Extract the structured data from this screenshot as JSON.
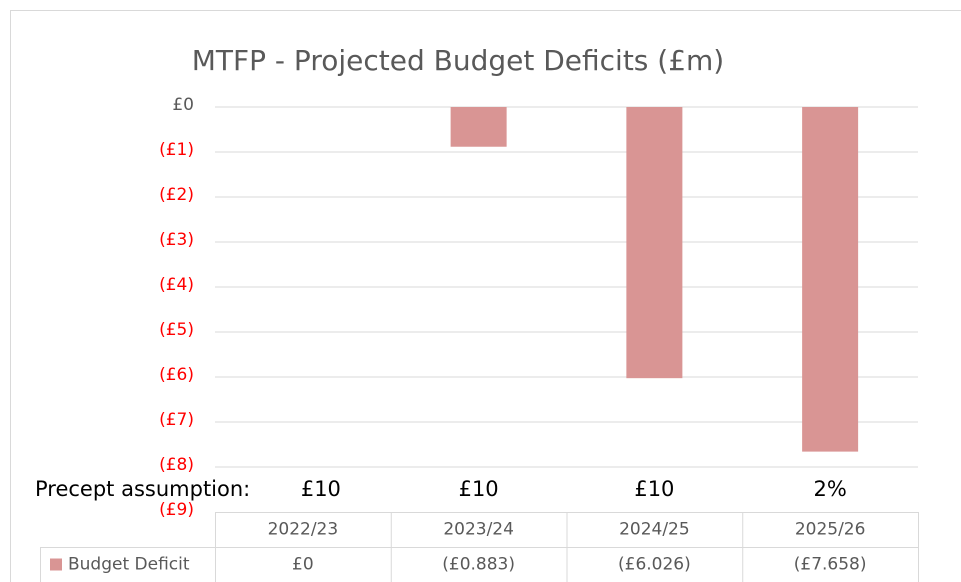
{
  "chart_data": {
    "type": "bar",
    "title": "MTFP - Projected Budget Deficits (£m)",
    "categories": [
      "2022/23",
      "2023/24",
      "2024/25",
      "2025/26"
    ],
    "series": [
      {
        "name": "Budget Deficit",
        "color": "#d99594",
        "values": [
          0,
          -0.883,
          -6.026,
          -7.658
        ],
        "value_labels": [
          "£0",
          "(£0.883)",
          "(£6.026)",
          "(£7.658)"
        ]
      }
    ],
    "ylim": [
      -9,
      0
    ],
    "yticks": [
      {
        "value": 0,
        "label": "£0"
      },
      {
        "value": -1,
        "label": "(£1)"
      },
      {
        "value": -2,
        "label": "(£2)"
      },
      {
        "value": -3,
        "label": "(£3)"
      },
      {
        "value": -4,
        "label": "(£4)"
      },
      {
        "value": -5,
        "label": "(£5)"
      },
      {
        "value": -6,
        "label": "(£6)"
      },
      {
        "value": -7,
        "label": "(£7)"
      },
      {
        "value": -8,
        "label": "(£8)"
      },
      {
        "value": -9,
        "label": "(£9)"
      }
    ],
    "tick_color": "#595959",
    "negative_tick_color": "#ff0000",
    "grid": true,
    "data_table": true,
    "annotations": {
      "label": "Precept assumption:",
      "values": [
        "£10",
        "£10",
        "£10",
        "2%"
      ]
    }
  }
}
